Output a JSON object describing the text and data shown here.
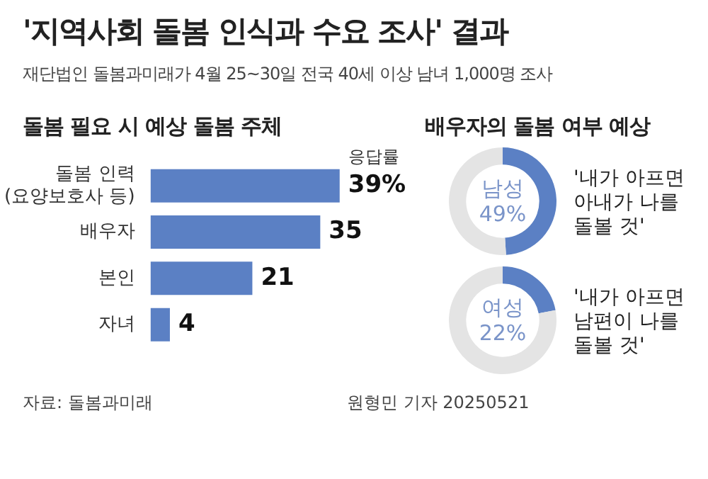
{
  "chart_data": [
    {
      "type": "bar",
      "orientation": "horizontal",
      "title": "'지역사회 돌봄 인식과 수요 조사' 결과",
      "subtitle": "재단법인 돌봄과미래가 4월 25~30일 전국 40세 이상 남녀 1,000명 조사",
      "categories": [
        "돌봄 인력\n(요양보호사 등)",
        "배우자",
        "본인",
        "자녀"
      ],
      "values": [
        39,
        35,
        21,
        4
      ],
      "color": "#5b80c4",
      "value_labels": [
        "39%",
        "35",
        "21",
        "4"
      ],
      "annotations": [
        "돌봄 필요 시 예상 돌봄 주체",
        {
          "text": "응답률",
          "x": 39,
          "y": "돌봄 인력\n(요양보호사 등)"
        },
        "자료: 돌봄과미래",
        "원형민 기자 20250521"
      ]
    },
    {
      "type": "donut",
      "title": "배우자의 돌봄 여부 예상",
      "categories": [
        "남성",
        null
      ],
      "values": [
        49,
        51
      ],
      "colors": [
        "#5b80c4",
        "#e4e4e4"
      ],
      "value_labels": [
        "49%",
        null
      ],
      "annotations": [
        "'내가 아프면\n아내가 나를\n돌볼 것'"
      ]
    },
    {
      "type": "donut",
      "categories": [
        "여성",
        null
      ],
      "values": [
        22,
        78
      ],
      "colors": [
        "#5b80c4",
        "#e4e4e4"
      ],
      "value_labels": [
        "22%",
        null
      ],
      "annotations": [
        "'내가 아프면\n남편이 나를\n돌볼 것'"
      ]
    }
  ]
}
